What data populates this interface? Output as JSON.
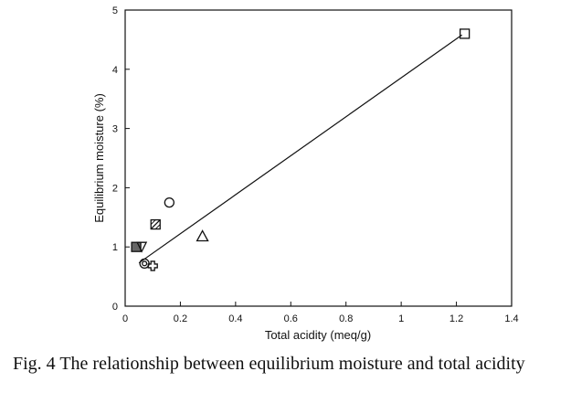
{
  "chart_data": {
    "type": "scatter",
    "xlabel": "Total acidity (meq/g)",
    "ylabel": "Equilibrium moisture (%)",
    "xlim": [
      0,
      1.4
    ],
    "ylim": [
      0,
      5
    ],
    "xticks": [
      "0",
      "0.2",
      "0.4",
      "0.6",
      "0.8",
      "1",
      "1.2",
      "1.4"
    ],
    "yticks": [
      "0",
      "1",
      "2",
      "3",
      "4",
      "5"
    ],
    "grid": false,
    "points": [
      {
        "x": 0.04,
        "y": 1.0,
        "marker": "filled-square"
      },
      {
        "x": 0.06,
        "y": 1.0,
        "marker": "triangle-down"
      },
      {
        "x": 0.07,
        "y": 0.72,
        "marker": "double-circle"
      },
      {
        "x": 0.1,
        "y": 0.68,
        "marker": "cross"
      },
      {
        "x": 0.11,
        "y": 1.38,
        "marker": "hatched-square"
      },
      {
        "x": 0.16,
        "y": 1.75,
        "marker": "circle"
      },
      {
        "x": 0.28,
        "y": 1.18,
        "marker": "triangle-up"
      },
      {
        "x": 1.23,
        "y": 4.6,
        "marker": "square"
      }
    ],
    "fit_line": {
      "x": [
        0.05,
        1.22
      ],
      "y": [
        0.73,
        4.58
      ]
    }
  },
  "caption": "Fig. 4  The relationship between equilibrium moisture and total acidity"
}
